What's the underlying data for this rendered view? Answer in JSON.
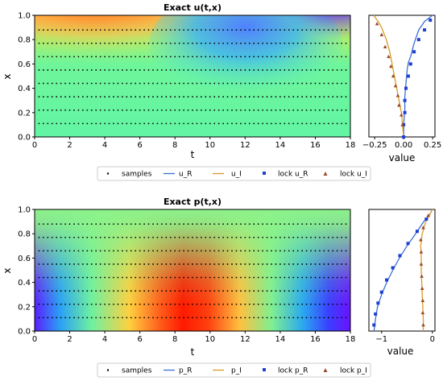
{
  "colors": {
    "series_real": "#3a6fd8",
    "series_imag": "#d89a2a",
    "marker_real": "#1f3fcf",
    "marker_imag": "#9a4a25",
    "samples": "#000000"
  },
  "chart_data": [
    {
      "type": "heatmap",
      "title": "Exact u(t,x)",
      "xlabel": "t",
      "ylabel": "x",
      "xlim": [
        0,
        18
      ],
      "ylim": [
        0,
        1
      ],
      "xticks": [
        "0",
        "2",
        "4",
        "6",
        "8",
        "10",
        "12",
        "14",
        "16",
        "18"
      ],
      "yticks": [
        "0.0",
        "0.2",
        "0.4",
        "0.6",
        "0.8",
        "1.0"
      ],
      "colormap": "rainbow",
      "field_description": "high at t=1-4 near x=1, low at t=11-14 near x=0.8, neutral near x=0",
      "sample_lines_x": [
        0.11,
        0.22,
        0.33,
        0.44,
        0.55,
        0.66,
        0.77,
        0.88
      ],
      "sample_dot_spacing_t": 0.25
    },
    {
      "type": "line",
      "xlabel": "value",
      "ylim": [
        0,
        1
      ],
      "xlim": [
        -0.3,
        0.27
      ],
      "xticks": [
        "-0.25",
        "0.00",
        "0.25"
      ],
      "series": [
        {
          "name": "u_R",
          "x": [
            0.0,
            0.0,
            0.01,
            0.01,
            0.02,
            0.03,
            0.04,
            0.06,
            0.09,
            0.13,
            0.18,
            0.25
          ],
          "y": [
            0.0,
            0.11,
            0.22,
            0.33,
            0.44,
            0.55,
            0.61,
            0.66,
            0.77,
            0.88,
            0.95,
            1.0
          ]
        },
        {
          "name": "u_I",
          "x": [
            0.0,
            -0.01,
            -0.02,
            -0.04,
            -0.06,
            -0.08,
            -0.1,
            -0.12,
            -0.15,
            -0.19,
            -0.22,
            -0.26
          ],
          "y": [
            0.0,
            0.1,
            0.2,
            0.3,
            0.4,
            0.5,
            0.6,
            0.7,
            0.8,
            0.9,
            0.95,
            1.0
          ]
        }
      ],
      "markers": [
        {
          "name": "lock u_R",
          "x": [
            0.0,
            0.0,
            0.01,
            0.01,
            0.02,
            0.04,
            0.06,
            0.09,
            0.13,
            0.18,
            0.23
          ],
          "y": [
            0.0,
            0.1,
            0.2,
            0.3,
            0.4,
            0.5,
            0.6,
            0.7,
            0.8,
            0.88,
            0.96
          ]
        },
        {
          "name": "lock u_I",
          "x": [
            -0.01,
            -0.02,
            -0.04,
            -0.05,
            -0.07,
            -0.09,
            -0.11,
            -0.13,
            -0.16,
            -0.19,
            -0.23
          ],
          "y": [
            0.1,
            0.18,
            0.26,
            0.34,
            0.42,
            0.5,
            0.58,
            0.66,
            0.74,
            0.84,
            0.93
          ]
        }
      ]
    },
    {
      "type": "heatmap",
      "title": "Exact p(t,x)",
      "xlabel": "t",
      "ylabel": "x",
      "xlim": [
        0,
        18
      ],
      "ylim": [
        0,
        1
      ],
      "xticks": [
        "0",
        "2",
        "4",
        "6",
        "8",
        "10",
        "12",
        "14",
        "16",
        "18"
      ],
      "yticks": [
        "0.0",
        "0.2",
        "0.4",
        "0.6",
        "0.8",
        "1.0"
      ],
      "colormap": "rainbow",
      "field_description": "high band centered at t~8.5 near x=0, low bands near t=0 and t=17, neutral near x=1",
      "sample_lines_x": [
        0.11,
        0.22,
        0.33,
        0.44,
        0.55,
        0.66,
        0.77,
        0.88
      ],
      "sample_dot_spacing_t": 0.25
    },
    {
      "type": "line",
      "xlabel": "value",
      "ylim": [
        0,
        1
      ],
      "xlim": [
        -1.25,
        0.05
      ],
      "xticks": [
        "-1",
        "0"
      ],
      "series": [
        {
          "name": "p_R",
          "x": [
            -1.15,
            -1.12,
            -1.08,
            -1.0,
            -0.9,
            -0.78,
            -0.65,
            -0.5,
            -0.33,
            -0.17,
            -0.05,
            0.0
          ],
          "y": [
            0.0,
            0.1,
            0.2,
            0.3,
            0.4,
            0.5,
            0.6,
            0.7,
            0.8,
            0.9,
            0.96,
            1.0
          ]
        },
        {
          "name": "p_I",
          "x": [
            -0.18,
            -0.18,
            -0.19,
            -0.2,
            -0.21,
            -0.22,
            -0.22,
            -0.23,
            -0.2,
            -0.13,
            -0.05,
            0.0
          ],
          "y": [
            0.0,
            0.1,
            0.2,
            0.3,
            0.4,
            0.5,
            0.6,
            0.7,
            0.8,
            0.9,
            0.96,
            1.0
          ]
        }
      ],
      "markers": [
        {
          "name": "lock p_R",
          "x": [
            -1.15,
            -1.12,
            -1.07,
            -1.0,
            -0.9,
            -0.78,
            -0.64,
            -0.48,
            -0.3,
            -0.12
          ],
          "y": [
            0.05,
            0.14,
            0.23,
            0.32,
            0.42,
            0.52,
            0.62,
            0.72,
            0.82,
            0.92
          ]
        },
        {
          "name": "lock p_I",
          "x": [
            -0.18,
            -0.19,
            -0.19,
            -0.2,
            -0.21,
            -0.22,
            -0.22,
            -0.23,
            -0.18,
            -0.08
          ],
          "y": [
            0.05,
            0.15,
            0.25,
            0.35,
            0.45,
            0.55,
            0.65,
            0.75,
            0.85,
            0.95
          ]
        }
      ]
    }
  ],
  "legend_top": {
    "entries": [
      "samples",
      "u_R",
      "u_I",
      "lock u_R",
      "lock u_I"
    ]
  },
  "legend_bottom": {
    "entries": [
      "samples",
      "p_R",
      "p_I",
      "lock p_R",
      "lock p_I"
    ]
  }
}
